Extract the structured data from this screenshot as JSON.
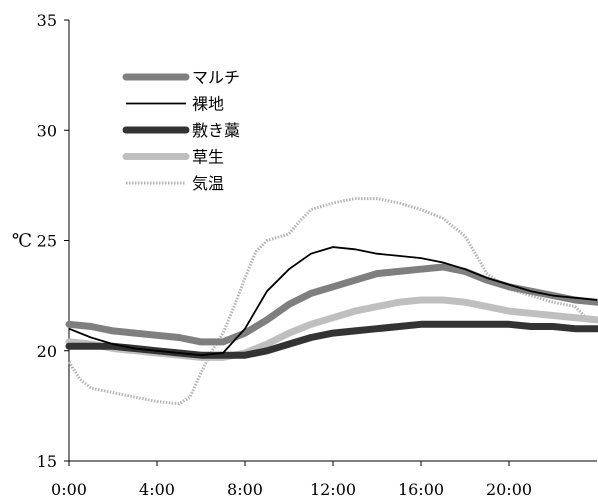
{
  "chart_data": {
    "type": "line",
    "ylabel": "℃",
    "ylim": [
      15,
      35
    ],
    "yticks": [
      "15",
      "20",
      "25",
      "30",
      "35"
    ],
    "xlim": [
      0,
      24
    ],
    "xticks": [
      "0:00",
      "4:00",
      "8:00",
      "12:00",
      "16:00",
      "20:00"
    ],
    "grid": false,
    "legend_position": "top-left",
    "series": [
      {
        "name": "マルチ",
        "color": "#7f7f7f",
        "style": "thick",
        "points": [
          [
            0,
            21.2
          ],
          [
            1,
            21.1
          ],
          [
            2,
            20.9
          ],
          [
            3,
            20.8
          ],
          [
            4,
            20.7
          ],
          [
            5,
            20.6
          ],
          [
            6,
            20.4
          ],
          [
            7,
            20.4
          ],
          [
            8,
            20.8
          ],
          [
            9,
            21.4
          ],
          [
            10,
            22.1
          ],
          [
            11,
            22.6
          ],
          [
            12,
            22.9
          ],
          [
            13,
            23.2
          ],
          [
            14,
            23.5
          ],
          [
            15,
            23.6
          ],
          [
            16,
            23.7
          ],
          [
            17,
            23.8
          ],
          [
            18,
            23.6
          ],
          [
            19,
            23.2
          ],
          [
            20,
            22.9
          ],
          [
            21,
            22.7
          ],
          [
            22,
            22.5
          ],
          [
            23,
            22.3
          ],
          [
            24,
            22.2
          ]
        ]
      },
      {
        "name": "裸地",
        "color": "#000000",
        "style": "thin",
        "points": [
          [
            0,
            21.0
          ],
          [
            1,
            20.6
          ],
          [
            2,
            20.3
          ],
          [
            3,
            20.1
          ],
          [
            4,
            20.0
          ],
          [
            5,
            19.9
          ],
          [
            6,
            19.8
          ],
          [
            7,
            19.9
          ],
          [
            8,
            21.0
          ],
          [
            9,
            22.7
          ],
          [
            10,
            23.7
          ],
          [
            11,
            24.4
          ],
          [
            12,
            24.7
          ],
          [
            13,
            24.6
          ],
          [
            14,
            24.4
          ],
          [
            15,
            24.3
          ],
          [
            16,
            24.2
          ],
          [
            17,
            24.0
          ],
          [
            18,
            23.7
          ],
          [
            19,
            23.3
          ],
          [
            20,
            23.0
          ],
          [
            21,
            22.7
          ],
          [
            22,
            22.5
          ],
          [
            23,
            22.4
          ],
          [
            24,
            22.3
          ]
        ]
      },
      {
        "name": "敷き藁",
        "color": "#333333",
        "style": "thick",
        "points": [
          [
            0,
            20.2
          ],
          [
            1,
            20.2
          ],
          [
            2,
            20.2
          ],
          [
            3,
            20.1
          ],
          [
            4,
            20.0
          ],
          [
            5,
            19.9
          ],
          [
            6,
            19.8
          ],
          [
            7,
            19.8
          ],
          [
            8,
            19.8
          ],
          [
            9,
            20.0
          ],
          [
            10,
            20.3
          ],
          [
            11,
            20.6
          ],
          [
            12,
            20.8
          ],
          [
            13,
            20.9
          ],
          [
            14,
            21.0
          ],
          [
            15,
            21.1
          ],
          [
            16,
            21.2
          ],
          [
            17,
            21.2
          ],
          [
            18,
            21.2
          ],
          [
            19,
            21.2
          ],
          [
            20,
            21.2
          ],
          [
            21,
            21.1
          ],
          [
            22,
            21.1
          ],
          [
            23,
            21.0
          ],
          [
            24,
            21.0
          ]
        ]
      },
      {
        "name": "草生",
        "color": "#bfbfbf",
        "style": "thick",
        "points": [
          [
            0,
            20.4
          ],
          [
            1,
            20.3
          ],
          [
            2,
            20.1
          ],
          [
            3,
            20.0
          ],
          [
            4,
            19.9
          ],
          [
            5,
            19.8
          ],
          [
            6,
            19.7
          ],
          [
            7,
            19.7
          ],
          [
            8,
            19.9
          ],
          [
            9,
            20.3
          ],
          [
            10,
            20.8
          ],
          [
            11,
            21.2
          ],
          [
            12,
            21.5
          ],
          [
            13,
            21.8
          ],
          [
            14,
            22.0
          ],
          [
            15,
            22.2
          ],
          [
            16,
            22.3
          ],
          [
            17,
            22.3
          ],
          [
            18,
            22.2
          ],
          [
            19,
            22.0
          ],
          [
            20,
            21.8
          ],
          [
            21,
            21.7
          ],
          [
            22,
            21.6
          ],
          [
            23,
            21.5
          ],
          [
            24,
            21.4
          ]
        ]
      },
      {
        "name": "気温",
        "color": "#b3b3b3",
        "style": "dotted",
        "points": [
          [
            0,
            19.5
          ],
          [
            0.5,
            18.7
          ],
          [
            1,
            18.3
          ],
          [
            2,
            18.1
          ],
          [
            3,
            17.9
          ],
          [
            4,
            17.7
          ],
          [
            5,
            17.6
          ],
          [
            5.5,
            17.9
          ],
          [
            6,
            19.0
          ],
          [
            6.5,
            20.0
          ],
          [
            7,
            20.8
          ],
          [
            7.5,
            22.0
          ],
          [
            8,
            23.3
          ],
          [
            8.5,
            24.5
          ],
          [
            9,
            25.0
          ],
          [
            10,
            25.3
          ],
          [
            10.5,
            25.9
          ],
          [
            11,
            26.4
          ],
          [
            12,
            26.7
          ],
          [
            13,
            26.9
          ],
          [
            14,
            26.9
          ],
          [
            15,
            26.7
          ],
          [
            16,
            26.4
          ],
          [
            17,
            26.0
          ],
          [
            18,
            25.2
          ],
          [
            19,
            23.5
          ],
          [
            20,
            22.8
          ],
          [
            21,
            22.5
          ],
          [
            22,
            22.2
          ],
          [
            23,
            22.0
          ],
          [
            23.5,
            21.5
          ],
          [
            24,
            21.3
          ]
        ]
      }
    ]
  }
}
